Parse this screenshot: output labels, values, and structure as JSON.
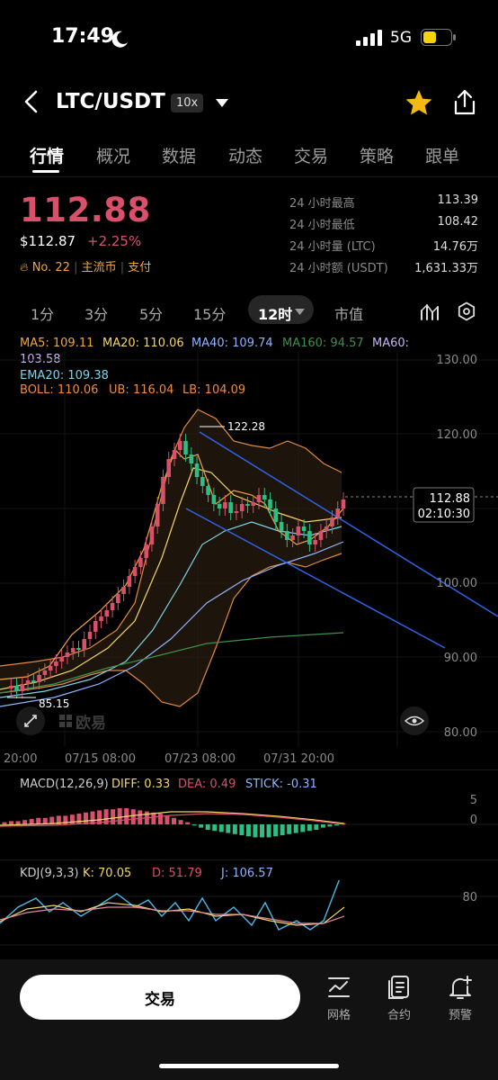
{
  "status": {
    "time": "17:49",
    "network": "5G"
  },
  "header": {
    "pair": "LTC/USDT",
    "leverage": "10x"
  },
  "tabs": [
    "行情",
    "概况",
    "数据",
    "动态",
    "交易",
    "策略",
    "跟单"
  ],
  "price": {
    "last": "112.88",
    "usd": "$112.87",
    "change": "+2.25%",
    "rank": "No. 22",
    "tag1": "主流币",
    "tag2": "支付"
  },
  "stats": [
    {
      "label": "24 小时最高",
      "value": "113.39"
    },
    {
      "label": "24 小时最低",
      "value": "108.42"
    },
    {
      "label": "24 小时量 (LTC)",
      "value": "14.76万"
    },
    {
      "label": "24 小时额 (USDT)",
      "value": "1,631.33万"
    }
  ],
  "intervals": [
    "1分",
    "3分",
    "5分",
    "15分",
    "12时",
    "市值"
  ],
  "active_interval": "12时",
  "ma_legend": {
    "ma5": "MA5: 109.11",
    "ma20": "MA20: 110.06",
    "ma40": "MA40: 109.74",
    "ma160": "MA160: 94.57",
    "ma60_label": "MA60:",
    "ma60_val": "103.58",
    "ema20": "EMA20: 109.38",
    "boll": "BOLL: 110.06",
    "ub": "UB: 116.04",
    "lb": "LB: 104.09"
  },
  "chart": {
    "y_ticks": [
      "130.00",
      "120.00",
      "100.00",
      "90.00",
      "80.00"
    ],
    "x_ticks": [
      "20:00",
      "07/15 08:00",
      "07/23 08:00",
      "07/31 20:00"
    ],
    "high_label": "122.28",
    "low_label": "85.15",
    "price_tag": "112.88",
    "countdown": "02:10:30",
    "watermark": "欧易"
  },
  "macd": {
    "title": "MACD(12,26,9)",
    "diff": "DIFF: 0.33",
    "dea": "DEA: 0.49",
    "stick": "STICK: -0.31",
    "ticks": [
      "5",
      "0"
    ]
  },
  "kdj": {
    "title": "KDJ(9,3,3)",
    "k": "K: 70.05",
    "d": "D: 51.79",
    "j": "J: 106.57",
    "ticks": [
      "80"
    ]
  },
  "bottom": {
    "trade_label": "交易",
    "grid_label": "网格",
    "contract_label": "合约",
    "alert_label": "预警"
  },
  "colors": {
    "up": "#d9506b",
    "down": "#2ebd85",
    "ma5": "#f0a63c",
    "ma20": "#f5d46a",
    "ma40": "#8fb4ff",
    "ma160": "#3d8f4a",
    "ema20": "#7fd3e8",
    "boll": "#f08a3c"
  }
}
